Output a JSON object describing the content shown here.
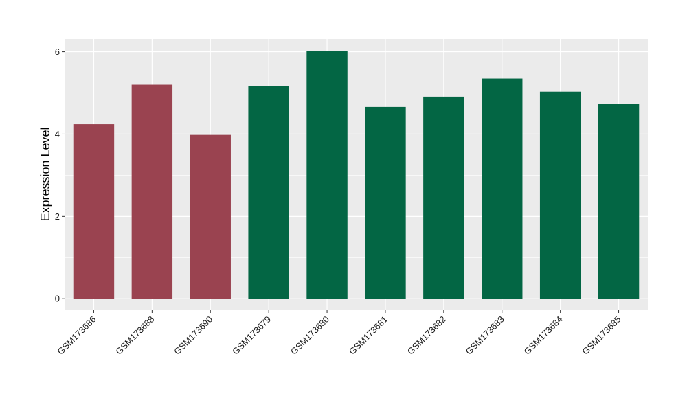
{
  "chart_data": {
    "type": "bar",
    "categories": [
      "GSM173686",
      "GSM173688",
      "GSM173690",
      "GSM173679",
      "GSM173680",
      "GSM173681",
      "GSM173682",
      "GSM173683",
      "GSM173684",
      "GSM173685"
    ],
    "values": [
      4.24,
      5.2,
      3.98,
      5.16,
      6.02,
      4.66,
      4.91,
      5.35,
      5.03,
      4.73
    ],
    "groups": [
      0,
      0,
      0,
      1,
      1,
      1,
      1,
      1,
      1,
      1
    ],
    "group_colors": [
      "#9A4350",
      "#036644"
    ],
    "xlabel": "",
    "ylabel": "Expression Level",
    "ylim": [
      -0.28,
      6.31
    ],
    "yticks": [
      0,
      2,
      4,
      6
    ],
    "grid": true,
    "legend": "none",
    "panel_background": "#EBEBEB",
    "grid_color": "#FFFFFF"
  }
}
